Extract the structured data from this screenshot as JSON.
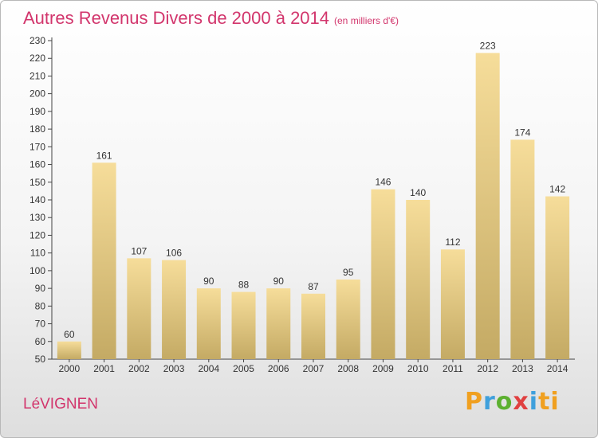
{
  "header": {
    "title": "Autres Revenus Divers de 2000 à 2014",
    "unit_note": "(en milliers d'€)"
  },
  "footer": {
    "town": "LéVIGNEN",
    "brand_letters": [
      "P",
      "r",
      "o",
      "x",
      "i",
      "t",
      "i"
    ]
  },
  "colors": {
    "title": "#d2356c",
    "bar_light": "#f6dd9a",
    "bar_dark": "#c4aa64"
  },
  "chart_data": {
    "type": "bar",
    "title": "Autres Revenus Divers de 2000 à 2014",
    "categories": [
      "2000",
      "2001",
      "2002",
      "2003",
      "2004",
      "2005",
      "2006",
      "2007",
      "2008",
      "2009",
      "2010",
      "2011",
      "2012",
      "2013",
      "2014"
    ],
    "values": [
      60,
      161,
      107,
      106,
      90,
      88,
      90,
      87,
      95,
      146,
      140,
      112,
      223,
      174,
      142
    ],
    "ylim": [
      50,
      230
    ],
    "yticks": [
      50,
      60,
      70,
      80,
      90,
      100,
      110,
      120,
      130,
      140,
      150,
      160,
      170,
      180,
      190,
      200,
      210,
      220,
      230
    ],
    "grid": false,
    "data_labels": true
  }
}
